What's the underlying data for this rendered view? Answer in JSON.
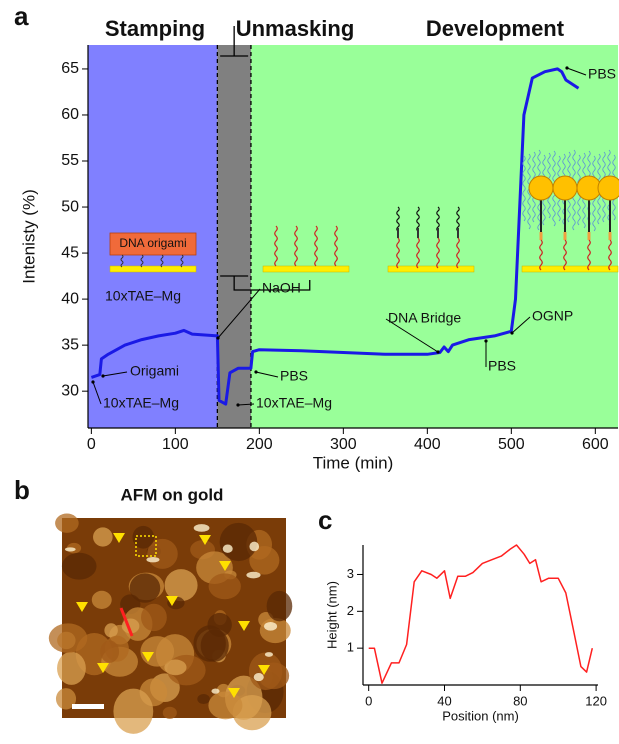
{
  "panel_labels": {
    "a": "a",
    "b": "b",
    "c": "c"
  },
  "afm_title": "AFM on gold",
  "illustration_label": "DNA origami",
  "chart_data": [
    {
      "type": "line",
      "xlabel": "Time (min)",
      "ylabel": "Intenisty (%)",
      "xlim": [
        -4,
        627
      ],
      "ylim": [
        26,
        67.6
      ],
      "xticks": [
        0,
        100,
        200,
        300,
        400,
        500,
        600
      ],
      "yticks": [
        30,
        35,
        40,
        45,
        50,
        55,
        60,
        65
      ],
      "phases": [
        {
          "label": "Stamping",
          "start": -4,
          "end": 150,
          "color": "#8080ff"
        },
        {
          "label": "Unmasking",
          "start": 150,
          "end": 190,
          "color": "#808080"
        },
        {
          "label": "Development",
          "start": 190,
          "end": 627,
          "color": "#99ff99"
        }
      ],
      "color": "#1a1ae6",
      "x": [
        0,
        10,
        12,
        20,
        40,
        60,
        80,
        100,
        110,
        120,
        150,
        152,
        160,
        165,
        175,
        190,
        192,
        200,
        250,
        300,
        350,
        400,
        415,
        420,
        425,
        430,
        450,
        480,
        500,
        505,
        510,
        515,
        525,
        540,
        555,
        560,
        565,
        580
      ],
      "values": [
        31.5,
        31.8,
        33.5,
        34,
        35,
        35.6,
        36,
        36.3,
        36.6,
        36.2,
        36,
        29,
        28.6,
        32,
        32.5,
        32.5,
        34.3,
        34.5,
        34.4,
        34.2,
        34,
        34,
        34.2,
        34.8,
        34.3,
        35,
        35.6,
        36,
        36.5,
        40,
        50,
        60,
        64,
        64.7,
        65,
        64.7,
        63.8,
        62.9
      ],
      "annotations": [
        "10xTAE–Mg",
        "Origami",
        "10xTAE–Mg",
        "NaOH",
        "PBS",
        "10xTAE–Mg",
        "DNA Bridge",
        "PBS",
        "OGNP",
        "PBS"
      ]
    },
    {
      "type": "line",
      "xlabel": "Position (nm)",
      "ylabel": "Height (nm)",
      "xlim": [
        -3,
        121
      ],
      "ylim": [
        0,
        3.8
      ],
      "xticks": [
        0,
        40,
        80,
        120
      ],
      "yticks": [
        1,
        2,
        3
      ],
      "color": "#ff2020",
      "x": [
        0,
        3,
        7,
        12,
        16,
        20,
        24,
        28,
        33,
        36,
        40,
        43,
        47,
        51,
        55,
        60,
        65,
        70,
        75,
        78,
        82,
        85,
        88,
        91,
        95,
        100,
        104,
        108,
        112,
        115,
        118
      ],
      "values": [
        1,
        1,
        0.05,
        0.6,
        0.6,
        1.1,
        2.8,
        3.1,
        3.0,
        2.9,
        3.1,
        2.35,
        2.95,
        2.95,
        3.05,
        3.3,
        3.4,
        3.5,
        3.7,
        3.8,
        3.55,
        3.3,
        3.4,
        2.8,
        2.9,
        2.9,
        2.5,
        1.5,
        0.5,
        0.35,
        1.0
      ]
    }
  ]
}
